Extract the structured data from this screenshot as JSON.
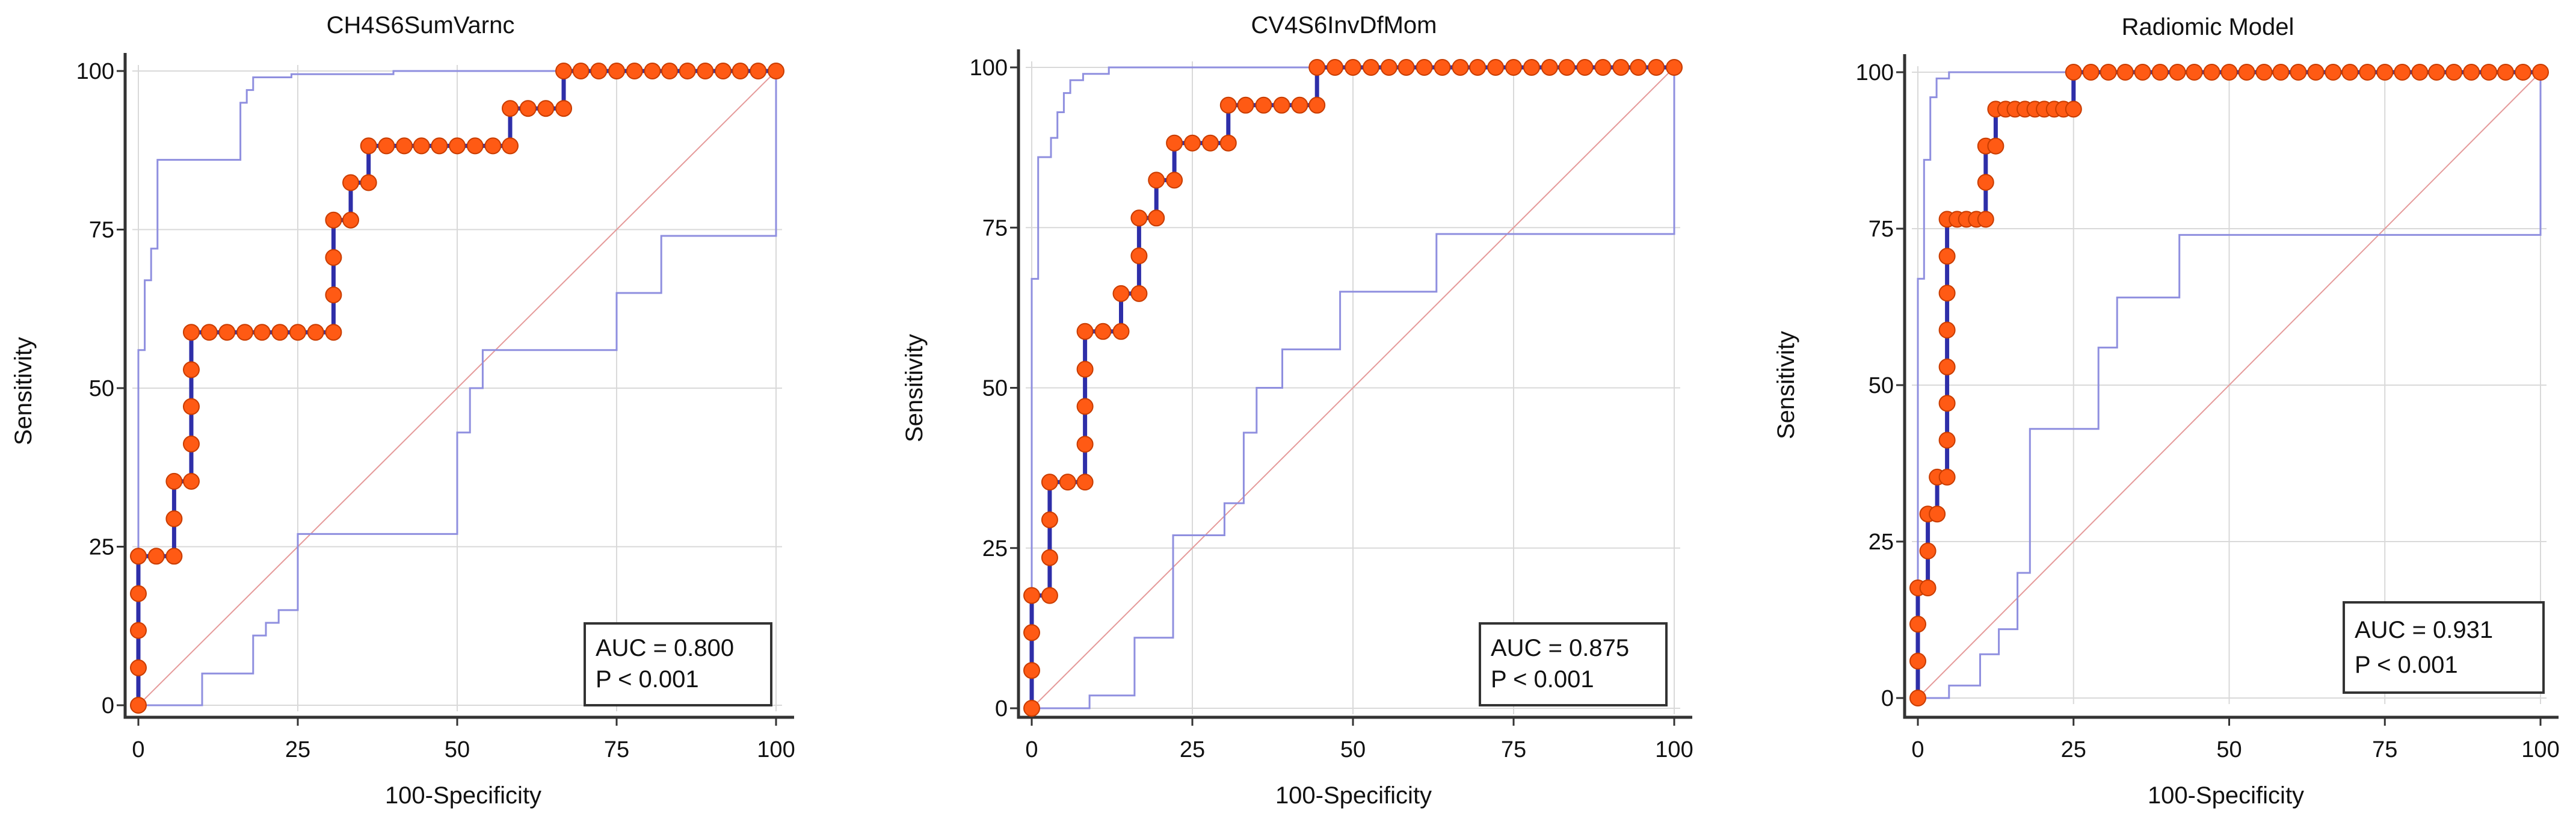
{
  "figure_labels": {
    "x_axis": "100-Specificity",
    "y_axis": "Sensitivity"
  },
  "colors": {
    "roc_line": "#2e2ea8",
    "points": "#ff5a14",
    "ci_lines": "#8f8fdf",
    "diagonal": "#e59a9a"
  },
  "chart_data": [
    {
      "type": "line",
      "title": "CH4S6SumVarnc",
      "xlabel": "100-Specificity",
      "ylabel": "Sensitivity",
      "xlim": [
        0,
        100
      ],
      "ylim": [
        0,
        100
      ],
      "xticks": [
        "0",
        "25",
        "50",
        "75",
        "100"
      ],
      "yticks": [
        "0",
        "25",
        "50",
        "75",
        "100"
      ],
      "auc_text": "AUC = 0.800",
      "p_text": "P < 0.001",
      "roc": [
        [
          0,
          0
        ],
        [
          0,
          5.9
        ],
        [
          0,
          11.8
        ],
        [
          0,
          17.6
        ],
        [
          0,
          23.5
        ],
        [
          2.8,
          23.5
        ],
        [
          5.6,
          23.5
        ],
        [
          5.6,
          29.4
        ],
        [
          5.6,
          35.3
        ],
        [
          8.3,
          35.3
        ],
        [
          8.3,
          41.2
        ],
        [
          8.3,
          47.1
        ],
        [
          8.3,
          52.9
        ],
        [
          8.3,
          58.8
        ],
        [
          11.1,
          58.8
        ],
        [
          13.9,
          58.8
        ],
        [
          16.7,
          58.8
        ],
        [
          19.4,
          58.8
        ],
        [
          22.2,
          58.8
        ],
        [
          25,
          58.8
        ],
        [
          27.8,
          58.8
        ],
        [
          30.6,
          58.8
        ],
        [
          30.6,
          64.7
        ],
        [
          30.6,
          70.6
        ],
        [
          30.6,
          76.5
        ],
        [
          33.3,
          76.5
        ],
        [
          33.3,
          82.4
        ],
        [
          36.1,
          82.4
        ],
        [
          36.1,
          88.2
        ],
        [
          38.9,
          88.2
        ],
        [
          41.7,
          88.2
        ],
        [
          44.4,
          88.2
        ],
        [
          47.2,
          88.2
        ],
        [
          50,
          88.2
        ],
        [
          52.8,
          88.2
        ],
        [
          55.6,
          88.2
        ],
        [
          58.3,
          88.2
        ],
        [
          58.3,
          94.1
        ],
        [
          61.1,
          94.1
        ],
        [
          63.9,
          94.1
        ],
        [
          66.7,
          94.1
        ],
        [
          66.7,
          100
        ],
        [
          69.4,
          100
        ],
        [
          72.2,
          100
        ],
        [
          75,
          100
        ],
        [
          77.8,
          100
        ],
        [
          80.6,
          100
        ],
        [
          83.3,
          100
        ],
        [
          86.1,
          100
        ],
        [
          88.9,
          100
        ],
        [
          91.7,
          100
        ],
        [
          94.4,
          100
        ],
        [
          97.2,
          100
        ],
        [
          100,
          100
        ]
      ],
      "ci_upper": [
        [
          0,
          0
        ],
        [
          0,
          56
        ],
        [
          1,
          56
        ],
        [
          1,
          67
        ],
        [
          2,
          67
        ],
        [
          2,
          72
        ],
        [
          3,
          72
        ],
        [
          3,
          86
        ],
        [
          16,
          86
        ],
        [
          16,
          95
        ],
        [
          17,
          95
        ],
        [
          17,
          97
        ],
        [
          18,
          97
        ],
        [
          18,
          99
        ],
        [
          24,
          99
        ],
        [
          24,
          99.5
        ],
        [
          40,
          99.5
        ],
        [
          40,
          100
        ],
        [
          100,
          100
        ]
      ],
      "ci_lower": [
        [
          0,
          0
        ],
        [
          10,
          0
        ],
        [
          10,
          5
        ],
        [
          18,
          5
        ],
        [
          18,
          11
        ],
        [
          20,
          11
        ],
        [
          20,
          13
        ],
        [
          22,
          13
        ],
        [
          22,
          15
        ],
        [
          25,
          15
        ],
        [
          25,
          27
        ],
        [
          50,
          27
        ],
        [
          50,
          43
        ],
        [
          52,
          43
        ],
        [
          52,
          50
        ],
        [
          54,
          50
        ],
        [
          54,
          56
        ],
        [
          75,
          56
        ],
        [
          75,
          65
        ],
        [
          82,
          65
        ],
        [
          82,
          74
        ],
        [
          100,
          74
        ],
        [
          100,
          100
        ]
      ]
    },
    {
      "type": "line",
      "title": "CV4S6InvDfMom",
      "xlabel": "100-Specificity",
      "ylabel": "Sensitivity",
      "xlim": [
        0,
        100
      ],
      "ylim": [
        0,
        100
      ],
      "xticks": [
        "0",
        "25",
        "50",
        "75",
        "100"
      ],
      "yticks": [
        "0",
        "25",
        "50",
        "75",
        "100"
      ],
      "auc_text": "AUC = 0.875",
      "p_text": "P < 0.001",
      "roc": [
        [
          0,
          0
        ],
        [
          0,
          5.9
        ],
        [
          0,
          11.8
        ],
        [
          0,
          17.6
        ],
        [
          2.8,
          17.6
        ],
        [
          2.8,
          23.5
        ],
        [
          2.8,
          29.4
        ],
        [
          2.8,
          35.3
        ],
        [
          5.6,
          35.3
        ],
        [
          8.3,
          35.3
        ],
        [
          8.3,
          41.2
        ],
        [
          8.3,
          47.1
        ],
        [
          8.3,
          52.9
        ],
        [
          8.3,
          58.8
        ],
        [
          11.1,
          58.8
        ],
        [
          13.9,
          58.8
        ],
        [
          13.9,
          64.7
        ],
        [
          16.7,
          64.7
        ],
        [
          16.7,
          70.6
        ],
        [
          16.7,
          76.5
        ],
        [
          19.4,
          76.5
        ],
        [
          19.4,
          82.4
        ],
        [
          22.2,
          82.4
        ],
        [
          22.2,
          88.2
        ],
        [
          25,
          88.2
        ],
        [
          27.8,
          88.2
        ],
        [
          30.6,
          88.2
        ],
        [
          30.6,
          94.1
        ],
        [
          33.3,
          94.1
        ],
        [
          36.1,
          94.1
        ],
        [
          38.9,
          94.1
        ],
        [
          41.7,
          94.1
        ],
        [
          44.4,
          94.1
        ],
        [
          44.4,
          100
        ],
        [
          47.2,
          100
        ],
        [
          50,
          100
        ],
        [
          52.8,
          100
        ],
        [
          55.6,
          100
        ],
        [
          58.3,
          100
        ],
        [
          61.1,
          100
        ],
        [
          63.9,
          100
        ],
        [
          66.7,
          100
        ],
        [
          69.4,
          100
        ],
        [
          72.2,
          100
        ],
        [
          75,
          100
        ],
        [
          77.8,
          100
        ],
        [
          80.6,
          100
        ],
        [
          83.3,
          100
        ],
        [
          86.1,
          100
        ],
        [
          88.9,
          100
        ],
        [
          91.7,
          100
        ],
        [
          94.4,
          100
        ],
        [
          97.2,
          100
        ],
        [
          100,
          100
        ]
      ],
      "ci_upper": [
        [
          0,
          0
        ],
        [
          0,
          67
        ],
        [
          1,
          67
        ],
        [
          1,
          86
        ],
        [
          3,
          86
        ],
        [
          3,
          89
        ],
        [
          4,
          89
        ],
        [
          4,
          93
        ],
        [
          5,
          93
        ],
        [
          5,
          96
        ],
        [
          6,
          96
        ],
        [
          6,
          98
        ],
        [
          8,
          98
        ],
        [
          8,
          99
        ],
        [
          12,
          99
        ],
        [
          12,
          100
        ],
        [
          100,
          100
        ]
      ],
      "ci_lower": [
        [
          0,
          0
        ],
        [
          9,
          0
        ],
        [
          9,
          2
        ],
        [
          16,
          2
        ],
        [
          16,
          11
        ],
        [
          22,
          11
        ],
        [
          22,
          27
        ],
        [
          30,
          27
        ],
        [
          30,
          32
        ],
        [
          33,
          32
        ],
        [
          33,
          43
        ],
        [
          35,
          43
        ],
        [
          35,
          50
        ],
        [
          39,
          50
        ],
        [
          39,
          56
        ],
        [
          48,
          56
        ],
        [
          48,
          65
        ],
        [
          63,
          65
        ],
        [
          63,
          74
        ],
        [
          100,
          74
        ],
        [
          100,
          100
        ]
      ]
    },
    {
      "type": "line",
      "title": "Radiomic Model",
      "xlabel": "100-Specificity",
      "ylabel": "Sensitivity",
      "xlim": [
        0,
        100
      ],
      "ylim": [
        0,
        100
      ],
      "xticks": [
        "0",
        "25",
        "50",
        "75",
        "100"
      ],
      "yticks": [
        "0",
        "25",
        "50",
        "75",
        "100"
      ],
      "auc_text": "AUC = 0.931",
      "p_text": "P < 0.001",
      "roc": [
        [
          0,
          0
        ],
        [
          0,
          5.9
        ],
        [
          0,
          11.8
        ],
        [
          0,
          17.6
        ],
        [
          1.6,
          17.6
        ],
        [
          1.6,
          23.5
        ],
        [
          1.6,
          29.4
        ],
        [
          3.1,
          29.4
        ],
        [
          3.1,
          35.3
        ],
        [
          4.7,
          35.3
        ],
        [
          4.7,
          41.2
        ],
        [
          4.7,
          47.1
        ],
        [
          4.7,
          52.9
        ],
        [
          4.7,
          58.8
        ],
        [
          4.7,
          64.7
        ],
        [
          4.7,
          70.6
        ],
        [
          4.7,
          76.5
        ],
        [
          6.3,
          76.5
        ],
        [
          7.8,
          76.5
        ],
        [
          9.4,
          76.5
        ],
        [
          10.9,
          76.5
        ],
        [
          10.9,
          82.4
        ],
        [
          10.9,
          88.2
        ],
        [
          12.5,
          88.2
        ],
        [
          12.5,
          94.1
        ],
        [
          14.1,
          94.1
        ],
        [
          15.6,
          94.1
        ],
        [
          17.2,
          94.1
        ],
        [
          18.8,
          94.1
        ],
        [
          20.3,
          94.1
        ],
        [
          21.9,
          94.1
        ],
        [
          23.4,
          94.1
        ],
        [
          25,
          94.1
        ],
        [
          25,
          100
        ],
        [
          27.8,
          100
        ],
        [
          30.6,
          100
        ],
        [
          33.3,
          100
        ],
        [
          36.1,
          100
        ],
        [
          38.9,
          100
        ],
        [
          41.7,
          100
        ],
        [
          44.4,
          100
        ],
        [
          47.2,
          100
        ],
        [
          50,
          100
        ],
        [
          52.8,
          100
        ],
        [
          55.6,
          100
        ],
        [
          58.3,
          100
        ],
        [
          61.1,
          100
        ],
        [
          63.9,
          100
        ],
        [
          66.7,
          100
        ],
        [
          69.4,
          100
        ],
        [
          72.2,
          100
        ],
        [
          75,
          100
        ],
        [
          77.8,
          100
        ],
        [
          80.6,
          100
        ],
        [
          83.3,
          100
        ],
        [
          86.1,
          100
        ],
        [
          88.9,
          100
        ],
        [
          91.7,
          100
        ],
        [
          94.4,
          100
        ],
        [
          97.2,
          100
        ],
        [
          100,
          100
        ]
      ],
      "ci_upper": [
        [
          0,
          0
        ],
        [
          0,
          67
        ],
        [
          1,
          67
        ],
        [
          1,
          86
        ],
        [
          2,
          86
        ],
        [
          2,
          96
        ],
        [
          3,
          96
        ],
        [
          3,
          99
        ],
        [
          5,
          99
        ],
        [
          5,
          100
        ],
        [
          100,
          100
        ]
      ],
      "ci_lower": [
        [
          0,
          0
        ],
        [
          5,
          0
        ],
        [
          5,
          2
        ],
        [
          10,
          2
        ],
        [
          10,
          7
        ],
        [
          13,
          7
        ],
        [
          13,
          11
        ],
        [
          16,
          11
        ],
        [
          16,
          20
        ],
        [
          18,
          20
        ],
        [
          18,
          43
        ],
        [
          29,
          43
        ],
        [
          29,
          56
        ],
        [
          32,
          56
        ],
        [
          32,
          64
        ],
        [
          42,
          64
        ],
        [
          42,
          74
        ],
        [
          100,
          74
        ],
        [
          100,
          100
        ]
      ]
    }
  ]
}
